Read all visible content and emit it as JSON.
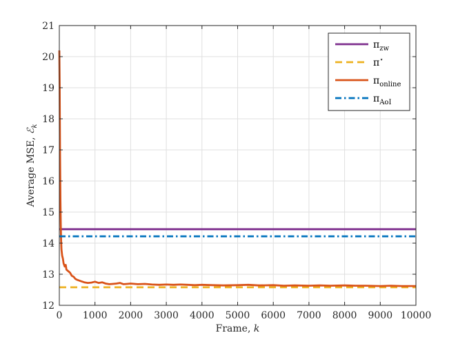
{
  "chart_data": {
    "type": "line",
    "title": "",
    "xlabel": "Frame, ",
    "xlabel_var": "k",
    "ylabel": "Average MSE, ",
    "ylabel_var": "ℰ",
    "ylabel_sub": "k",
    "xlim": [
      0,
      10000
    ],
    "ylim": [
      12,
      21
    ],
    "xticks": [
      "0",
      "1000",
      "2000",
      "3000",
      "4000",
      "5000",
      "6000",
      "7000",
      "8000",
      "9000",
      "10000"
    ],
    "yticks": [
      "12",
      "13",
      "14",
      "15",
      "16",
      "17",
      "18",
      "19",
      "20",
      "21"
    ],
    "grid": true,
    "legend_position": "top-right",
    "series": [
      {
        "key": "zw",
        "name": "π",
        "sub": "zw",
        "sup": "",
        "color": "#7e2f8e",
        "style": "solid",
        "x": [
          0,
          10000
        ],
        "y": [
          14.45,
          14.45
        ]
      },
      {
        "key": "star",
        "name": "π",
        "sub": "",
        "sup": "⋆",
        "color": "#edb120",
        "style": "dashed",
        "x": [
          0,
          10000
        ],
        "y": [
          12.58,
          12.58
        ]
      },
      {
        "key": "online",
        "name": "π",
        "sub": "online",
        "sup": "",
        "color": "#d95319",
        "style": "solid",
        "x": [
          0,
          10,
          20,
          30,
          40,
          50,
          60,
          80,
          100,
          120,
          150,
          180,
          200,
          250,
          300,
          350,
          400,
          450,
          500,
          600,
          700,
          800,
          900,
          1000,
          1100,
          1200,
          1300,
          1400,
          1500,
          1600,
          1700,
          1800,
          1900,
          2000,
          2200,
          2400,
          2600,
          2800,
          3000,
          3200,
          3400,
          3600,
          3800,
          4000,
          4300,
          4600,
          5000,
          5300,
          5600,
          6000,
          6300,
          6600,
          7000,
          7300,
          7600,
          8000,
          8300,
          8600,
          9000,
          9300,
          9600,
          10000
        ],
        "y": [
          20.2,
          19.0,
          17.0,
          15.4,
          14.6,
          14.1,
          13.8,
          13.6,
          13.5,
          13.35,
          13.25,
          13.3,
          13.15,
          13.1,
          13.05,
          12.95,
          12.92,
          12.85,
          12.82,
          12.78,
          12.74,
          12.72,
          12.73,
          12.76,
          12.72,
          12.74,
          12.7,
          12.68,
          12.69,
          12.7,
          12.72,
          12.68,
          12.69,
          12.7,
          12.68,
          12.69,
          12.67,
          12.66,
          12.67,
          12.66,
          12.67,
          12.66,
          12.65,
          12.66,
          12.65,
          12.64,
          12.65,
          12.66,
          12.64,
          12.65,
          12.63,
          12.64,
          12.63,
          12.64,
          12.63,
          12.64,
          12.63,
          12.63,
          12.62,
          12.63,
          12.62,
          12.62
        ]
      },
      {
        "key": "aoi",
        "name": "π",
        "sub": "AoI",
        "sup": "",
        "color": "#0072bd",
        "style": "dashdot",
        "x": [
          0,
          10000
        ],
        "y": [
          14.22,
          14.22
        ]
      }
    ]
  }
}
